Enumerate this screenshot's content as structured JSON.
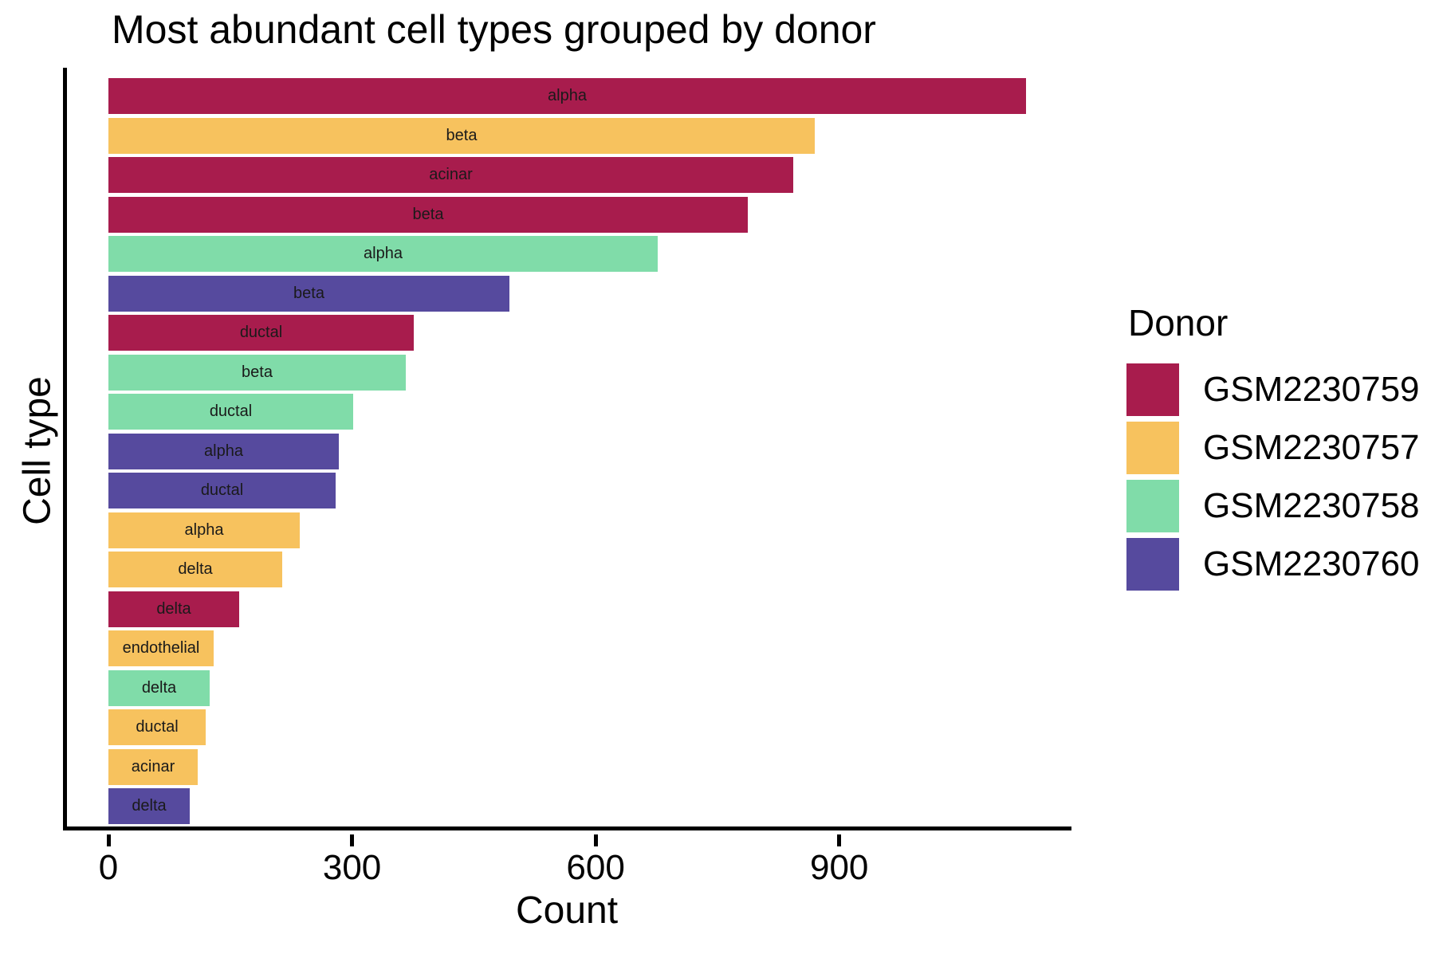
{
  "chart_data": {
    "type": "bar",
    "orientation": "horizontal",
    "title": "Most abundant cell types grouped by donor",
    "xlabel": "Count",
    "ylabel": "Cell type",
    "x_ticks": [
      0,
      300,
      600,
      900
    ],
    "x_axis_max": 1186,
    "grid": false,
    "legend": {
      "title": "Donor",
      "position": "right",
      "entries": [
        {
          "donor": "GSM2230759",
          "color": "#A81C4D"
        },
        {
          "donor": "GSM2230757",
          "color": "#F7C25E"
        },
        {
          "donor": "GSM2230758",
          "color": "#80DCA9"
        },
        {
          "donor": "GSM2230760",
          "color": "#564A9E"
        }
      ]
    },
    "bars": [
      {
        "cell_type": "alpha",
        "donor": "GSM2230759",
        "count": 1130
      },
      {
        "cell_type": "beta",
        "donor": "GSM2230757",
        "count": 870
      },
      {
        "cell_type": "acinar",
        "donor": "GSM2230759",
        "count": 843
      },
      {
        "cell_type": "beta",
        "donor": "GSM2230759",
        "count": 787
      },
      {
        "cell_type": "alpha",
        "donor": "GSM2230758",
        "count": 676
      },
      {
        "cell_type": "beta",
        "donor": "GSM2230760",
        "count": 494
      },
      {
        "cell_type": "ductal",
        "donor": "GSM2230759",
        "count": 376
      },
      {
        "cell_type": "beta",
        "donor": "GSM2230758",
        "count": 366
      },
      {
        "cell_type": "ductal",
        "donor": "GSM2230758",
        "count": 301
      },
      {
        "cell_type": "alpha",
        "donor": "GSM2230760",
        "count": 284
      },
      {
        "cell_type": "ductal",
        "donor": "GSM2230760",
        "count": 280
      },
      {
        "cell_type": "alpha",
        "donor": "GSM2230757",
        "count": 236
      },
      {
        "cell_type": "delta",
        "donor": "GSM2230757",
        "count": 214
      },
      {
        "cell_type": "delta",
        "donor": "GSM2230759",
        "count": 161
      },
      {
        "cell_type": "endothelial",
        "donor": "GSM2230757",
        "count": 130
      },
      {
        "cell_type": "delta",
        "donor": "GSM2230758",
        "count": 125
      },
      {
        "cell_type": "ductal",
        "donor": "GSM2230757",
        "count": 120
      },
      {
        "cell_type": "acinar",
        "donor": "GSM2230757",
        "count": 110
      },
      {
        "cell_type": "delta",
        "donor": "GSM2230760",
        "count": 100
      }
    ]
  }
}
